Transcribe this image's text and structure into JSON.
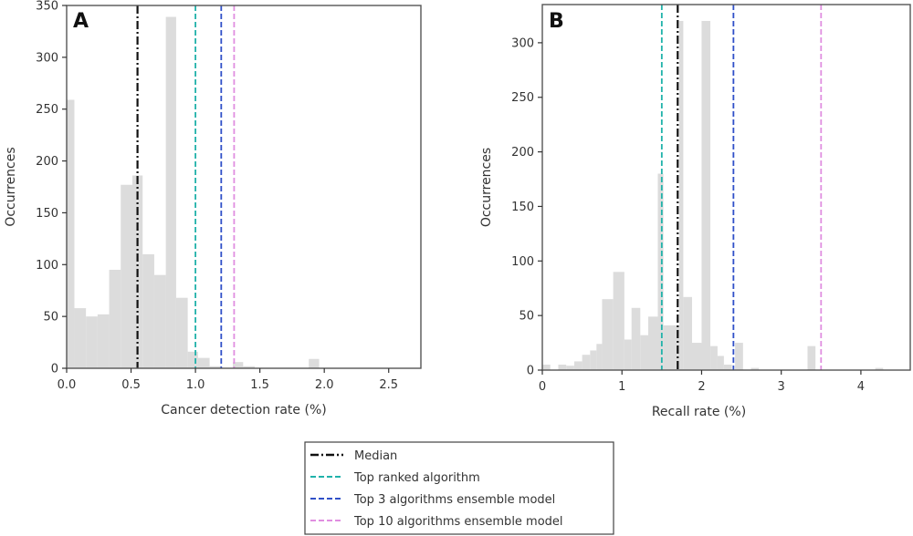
{
  "chart_data": [
    {
      "panel": "A",
      "type": "bar",
      "subtype": "histogram",
      "xlabel": "Cancer detection rate (%)",
      "ylabel": "Occurrences",
      "xlim": [
        0.0,
        2.75
      ],
      "ylim": [
        0,
        350
      ],
      "xticks": [
        "0.0",
        "0.5",
        "1.0",
        "1.5",
        "2.0",
        "2.5"
      ],
      "xtick_values": [
        0.0,
        0.5,
        1.0,
        1.5,
        2.0,
        2.5
      ],
      "yticks": [
        "0",
        "50",
        "100",
        "150",
        "200",
        "250",
        "300",
        "350"
      ],
      "ytick_values": [
        0,
        50,
        100,
        150,
        200,
        250,
        300,
        350
      ],
      "bins": [
        {
          "x0": 0.0,
          "x1": 0.06,
          "count": 259
        },
        {
          "x0": 0.06,
          "x1": 0.15,
          "count": 58
        },
        {
          "x0": 0.15,
          "x1": 0.24,
          "count": 50
        },
        {
          "x0": 0.24,
          "x1": 0.33,
          "count": 52
        },
        {
          "x0": 0.33,
          "x1": 0.42,
          "count": 95
        },
        {
          "x0": 0.42,
          "x1": 0.51,
          "count": 177
        },
        {
          "x0": 0.51,
          "x1": 0.59,
          "count": 186
        },
        {
          "x0": 0.59,
          "x1": 0.68,
          "count": 110
        },
        {
          "x0": 0.68,
          "x1": 0.77,
          "count": 90
        },
        {
          "x0": 0.77,
          "x1": 0.85,
          "count": 339
        },
        {
          "x0": 0.85,
          "x1": 0.94,
          "count": 68
        },
        {
          "x0": 0.94,
          "x1": 1.02,
          "count": 16
        },
        {
          "x0": 1.02,
          "x1": 1.11,
          "count": 10
        },
        {
          "x0": 1.11,
          "x1": 1.2,
          "count": 2
        },
        {
          "x0": 1.29,
          "x1": 1.37,
          "count": 6
        },
        {
          "x0": 1.37,
          "x1": 1.46,
          "count": 2
        },
        {
          "x0": 1.88,
          "x1": 1.96,
          "count": 9
        }
      ],
      "reference_lines": [
        {
          "name": "Median",
          "x": 0.55,
          "color": "#111111",
          "style": "dashdot"
        },
        {
          "name": "Top ranked algorithm",
          "x": 1.0,
          "color": "#20b2aa",
          "style": "dashed"
        },
        {
          "name": "Top 3 algorithms ensemble model",
          "x": 1.2,
          "color": "#3050c8",
          "style": "dashed"
        },
        {
          "name": "Top 10 algorithms ensemble model",
          "x": 1.3,
          "color": "#e08ee0",
          "style": "dashed"
        }
      ]
    },
    {
      "panel": "B",
      "type": "bar",
      "subtype": "histogram",
      "xlabel": "Recall rate (%)",
      "ylabel": "Occurrences",
      "xlim": [
        0.0,
        4.62
      ],
      "ylim": [
        0,
        335
      ],
      "xticks": [
        "0",
        "1",
        "2",
        "3",
        "4"
      ],
      "xtick_values": [
        0,
        1,
        2,
        3,
        4
      ],
      "yticks": [
        "0",
        "50",
        "100",
        "150",
        "200",
        "250",
        "300"
      ],
      "ytick_values": [
        0,
        50,
        100,
        150,
        200,
        250,
        300
      ],
      "bins": [
        {
          "x0": 0.0,
          "x1": 0.1,
          "count": 5
        },
        {
          "x0": 0.2,
          "x1": 0.3,
          "count": 5
        },
        {
          "x0": 0.3,
          "x1": 0.4,
          "count": 4
        },
        {
          "x0": 0.4,
          "x1": 0.5,
          "count": 8
        },
        {
          "x0": 0.5,
          "x1": 0.6,
          "count": 14
        },
        {
          "x0": 0.6,
          "x1": 0.68,
          "count": 18
        },
        {
          "x0": 0.68,
          "x1": 0.75,
          "count": 24
        },
        {
          "x0": 0.75,
          "x1": 0.89,
          "count": 65
        },
        {
          "x0": 0.89,
          "x1": 1.03,
          "count": 90
        },
        {
          "x0": 1.03,
          "x1": 1.12,
          "count": 28
        },
        {
          "x0": 1.12,
          "x1": 1.23,
          "count": 57
        },
        {
          "x0": 1.23,
          "x1": 1.33,
          "count": 32
        },
        {
          "x0": 1.33,
          "x1": 1.45,
          "count": 49
        },
        {
          "x0": 1.45,
          "x1": 1.52,
          "count": 180
        },
        {
          "x0": 1.52,
          "x1": 1.72,
          "count": 41
        },
        {
          "x0": 1.72,
          "x1": 1.77,
          "count": 320
        },
        {
          "x0": 1.77,
          "x1": 1.88,
          "count": 67
        },
        {
          "x0": 1.88,
          "x1": 2.0,
          "count": 25
        },
        {
          "x0": 2.0,
          "x1": 2.11,
          "count": 320
        },
        {
          "x0": 2.11,
          "x1": 2.2,
          "count": 22
        },
        {
          "x0": 2.2,
          "x1": 2.28,
          "count": 13
        },
        {
          "x0": 2.28,
          "x1": 2.38,
          "count": 5
        },
        {
          "x0": 2.42,
          "x1": 2.52,
          "count": 25
        },
        {
          "x0": 2.62,
          "x1": 2.72,
          "count": 2
        },
        {
          "x0": 3.33,
          "x1": 3.43,
          "count": 22
        },
        {
          "x0": 4.18,
          "x1": 4.28,
          "count": 2
        }
      ],
      "reference_lines": [
        {
          "name": "Median",
          "x": 1.7,
          "color": "#111111",
          "style": "dashdot"
        },
        {
          "name": "Top ranked algorithm",
          "x": 1.5,
          "color": "#20b2aa",
          "style": "dashed"
        },
        {
          "name": "Top 3 algorithms ensemble model",
          "x": 2.4,
          "color": "#3050c8",
          "style": "dashed"
        },
        {
          "name": "Top 10 algorithms ensemble model",
          "x": 3.5,
          "color": "#e08ee0",
          "style": "dashed"
        }
      ]
    }
  ],
  "legend": {
    "placement": "bottom-center",
    "entries": [
      {
        "label": "Median",
        "color": "#111111",
        "style": "dashdot"
      },
      {
        "label": "Top ranked algorithm",
        "color": "#20b2aa",
        "style": "dashed"
      },
      {
        "label": "Top 3 algorithms ensemble model",
        "color": "#3050c8",
        "style": "dashed"
      },
      {
        "label": "Top 10 algorithms ensemble model",
        "color": "#e08ee0",
        "style": "dashed"
      }
    ]
  },
  "bar_color": "#dcdcdc"
}
